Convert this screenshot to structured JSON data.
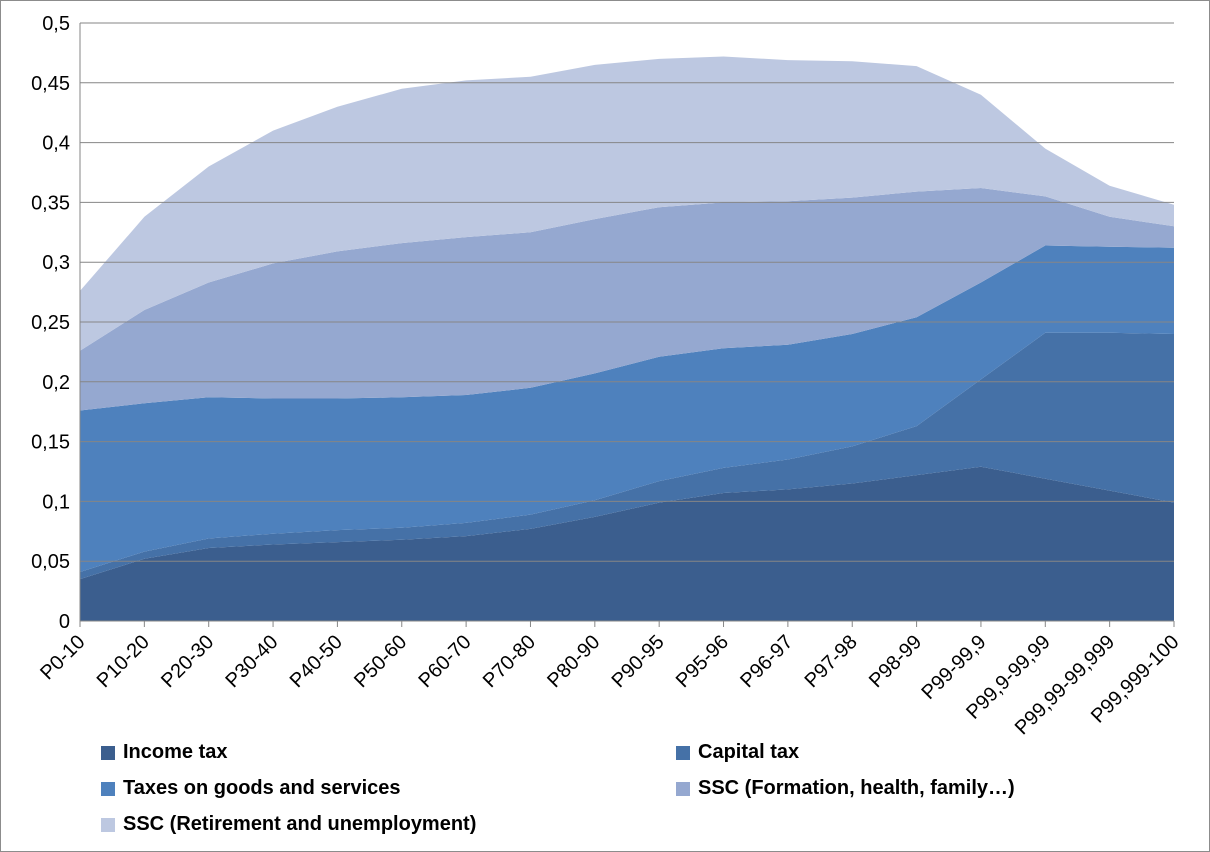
{
  "chart_data": {
    "type": "area",
    "stacked": true,
    "title": "",
    "xlabel": "",
    "ylabel": "",
    "ylim": [
      0,
      0.5
    ],
    "yticks": [
      "0",
      "0,05",
      "0,1",
      "0,15",
      "0,2",
      "0,25",
      "0,3",
      "0,35",
      "0,4",
      "0,45",
      "0,5"
    ],
    "gridlines": true,
    "legend_position": "bottom",
    "categories": [
      "P0-10",
      "P10-20",
      "P20-30",
      "P30-40",
      "P40-50",
      "P50-60",
      "P60-70",
      "P70-80",
      "P80-90",
      "P90-95",
      "P95-96",
      "P96-97",
      "P97-98",
      "P98-99",
      "P99-99,9",
      "P99,9-99,99",
      "P99,99-99,999",
      "P99,999-100"
    ],
    "series": [
      {
        "name": "Income tax",
        "color": "#3b5e8e",
        "values": [
          0.035,
          0.052,
          0.061,
          0.064,
          0.066,
          0.068,
          0.071,
          0.077,
          0.087,
          0.099,
          0.107,
          0.11,
          0.115,
          0.122,
          0.129,
          0.119,
          0.109,
          0.099
        ]
      },
      {
        "name": "Capital tax",
        "color": "#4571a7",
        "values": [
          0.006,
          0.006,
          0.008,
          0.009,
          0.01,
          0.01,
          0.011,
          0.012,
          0.014,
          0.018,
          0.021,
          0.025,
          0.031,
          0.041,
          0.073,
          0.122,
          0.132,
          0.141
        ]
      },
      {
        "name": "Taxes on goods and services",
        "color": "#4e81bd",
        "values": [
          0.135,
          0.124,
          0.118,
          0.113,
          0.11,
          0.109,
          0.107,
          0.106,
          0.106,
          0.104,
          0.1,
          0.096,
          0.094,
          0.091,
          0.081,
          0.073,
          0.072,
          0.072
        ]
      },
      {
        "name": "SSC (Formation, health, family…)",
        "color": "#95a8d0",
        "values": [
          0.05,
          0.078,
          0.096,
          0.113,
          0.123,
          0.129,
          0.132,
          0.13,
          0.129,
          0.125,
          0.122,
          0.12,
          0.114,
          0.105,
          0.079,
          0.041,
          0.025,
          0.018
        ]
      },
      {
        "name": "SSC (Retirement and unemployment)",
        "color": "#bdc8e1",
        "values": [
          0.05,
          0.078,
          0.097,
          0.111,
          0.121,
          0.129,
          0.131,
          0.13,
          0.129,
          0.124,
          0.122,
          0.118,
          0.114,
          0.105,
          0.078,
          0.04,
          0.026,
          0.018
        ]
      }
    ]
  }
}
